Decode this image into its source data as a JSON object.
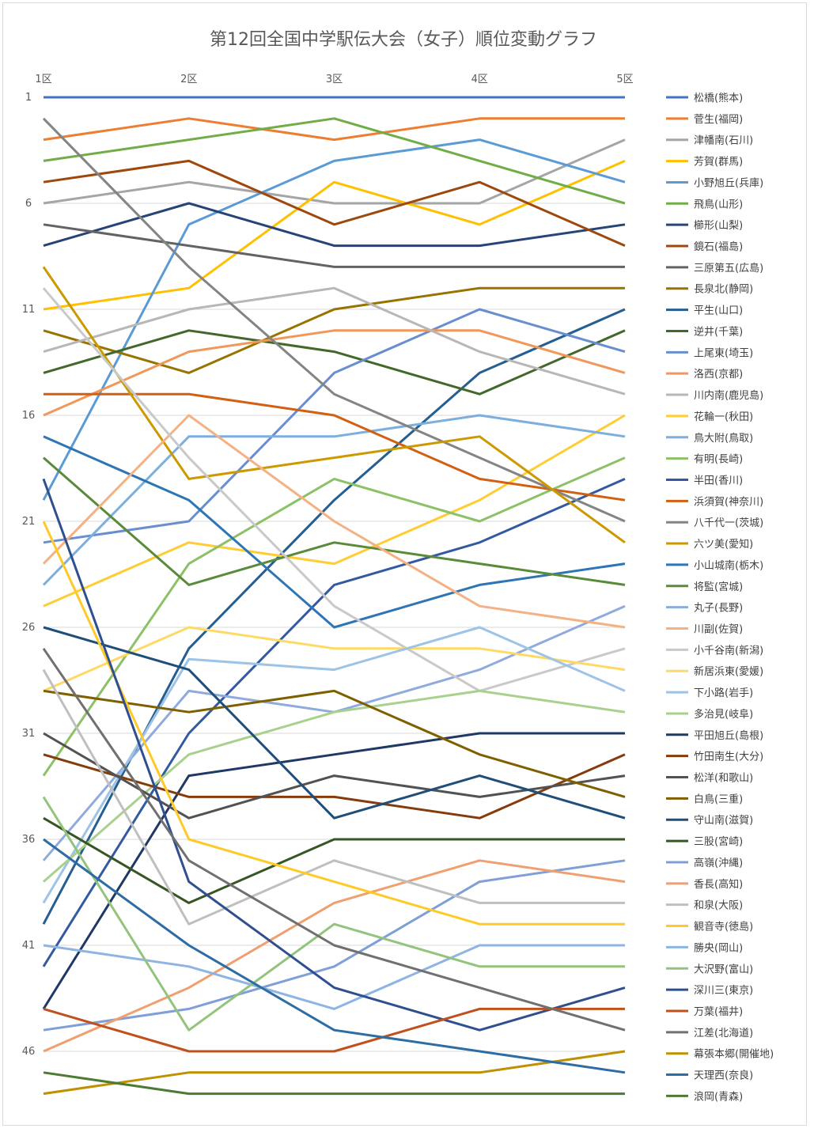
{
  "chart_data": {
    "type": "line",
    "title": "第12回全国中学駅伝大会（女子）順位変動グラフ",
    "xlabel": "",
    "ylabel": "",
    "categories": [
      "1区",
      "2区",
      "3区",
      "4区",
      "5区"
    ],
    "y_reversed": true,
    "ylim": [
      1,
      47
    ],
    "y_ticks": [
      1,
      6,
      11,
      16,
      21,
      26,
      31,
      36,
      41,
      46
    ],
    "grid": true,
    "legend_position": "right",
    "series": [
      {
        "name": "松橋(熊本)",
        "color": "#4472c4",
        "values": [
          1,
          1,
          1,
          1,
          1
        ]
      },
      {
        "name": "菅生(福岡)",
        "color": "#ed7d31",
        "values": [
          3,
          2,
          3,
          2,
          2
        ]
      },
      {
        "name": "津幡南(石川)",
        "color": "#a5a5a5",
        "values": [
          6,
          5,
          6,
          6,
          3
        ]
      },
      {
        "name": "芳賀(群馬)",
        "color": "#ffc000",
        "values": [
          11,
          10,
          5,
          7,
          4
        ]
      },
      {
        "name": "小野旭丘(兵庫)",
        "color": "#5b9bd5",
        "values": [
          20,
          7,
          4,
          3,
          5
        ]
      },
      {
        "name": "飛鳥(山形)",
        "color": "#70ad47",
        "values": [
          4,
          3,
          2,
          4,
          6
        ]
      },
      {
        "name": "櫛形(山梨)",
        "color": "#264478",
        "values": [
          8,
          6,
          8,
          8,
          7
        ]
      },
      {
        "name": "鏡石(福島)",
        "color": "#9e480e",
        "values": [
          5,
          4,
          7,
          5,
          8
        ]
      },
      {
        "name": "三原第五(広島)",
        "color": "#636363",
        "values": [
          7,
          8,
          9,
          9,
          9
        ]
      },
      {
        "name": "長泉北(静岡)",
        "color": "#997300",
        "values": [
          12,
          14,
          11,
          10,
          10
        ]
      },
      {
        "name": "平生(山口)",
        "color": "#255e91",
        "values": [
          40,
          27,
          20,
          14,
          11
        ]
      },
      {
        "name": "逆井(千葉)",
        "color": "#43682b",
        "values": [
          14,
          12,
          13,
          15,
          12
        ]
      },
      {
        "name": "上尾東(埼玉)",
        "color": "#698ed0",
        "values": [
          22,
          21,
          14,
          11,
          13
        ]
      },
      {
        "name": "洛西(京都)",
        "color": "#f1975a",
        "values": [
          16,
          13,
          12,
          12,
          14
        ]
      },
      {
        "name": "川内南(鹿児島)",
        "color": "#b7b7b7",
        "values": [
          13,
          11,
          10,
          13,
          15
        ]
      },
      {
        "name": "花輪一(秋田)",
        "color": "#ffcd33",
        "values": [
          25,
          22,
          23,
          20,
          16
        ]
      },
      {
        "name": "鳥大附(鳥取)",
        "color": "#7cafdd",
        "values": [
          24,
          17,
          17,
          16,
          17
        ]
      },
      {
        "name": "有明(長崎)",
        "color": "#8cc168",
        "values": [
          33,
          23,
          19,
          21,
          18
        ]
      },
      {
        "name": "半田(香川)",
        "color": "#335aa1",
        "values": [
          42,
          31,
          24,
          22,
          19
        ]
      },
      {
        "name": "浜須賀(神奈川)",
        "color": "#d26012",
        "values": [
          15,
          15,
          16,
          19,
          20
        ]
      },
      {
        "name": "八千代一(茨城)",
        "color": "#848484",
        "values": [
          2,
          9,
          15,
          18,
          21
        ]
      },
      {
        "name": "六ツ美(愛知)",
        "color": "#cc9a00",
        "values": [
          9,
          19,
          18,
          17,
          22
        ]
      },
      {
        "name": "小山城南(栃木)",
        "color": "#2e75b6",
        "values": [
          17,
          20,
          26,
          24,
          23
        ]
      },
      {
        "name": "将監(宮城)",
        "color": "#5a8b3a",
        "values": [
          18,
          24,
          22,
          23,
          24
        ]
      },
      {
        "name": "丸子(長野)",
        "color": "#8faadc",
        "values": [
          37,
          29,
          30,
          28,
          25
        ]
      },
      {
        "name": "川副(佐賀)",
        "color": "#f4b183",
        "values": [
          23,
          16,
          21,
          25,
          26
        ]
      },
      {
        "name": "小千谷南(新潟)",
        "color": "#c9c9c9",
        "values": [
          10,
          18,
          25,
          29,
          27
        ]
      },
      {
        "name": "新居浜東(愛媛)",
        "color": "#ffd966",
        "values": [
          29,
          26,
          27,
          27,
          28
        ]
      },
      {
        "name": "下小路(岩手)",
        "color": "#9dc3e6",
        "values": [
          39,
          27.5,
          28,
          26,
          29
        ]
      },
      {
        "name": "多治見(岐阜)",
        "color": "#a9d18e",
        "values": [
          38,
          32,
          30,
          29,
          30
        ]
      },
      {
        "name": "平田旭丘(島根)",
        "color": "#1f3864",
        "values": [
          44,
          33,
          32,
          31,
          31
        ]
      },
      {
        "name": "竹田南生(大分)",
        "color": "#843c0c",
        "values": [
          32,
          34,
          34,
          35,
          32
        ]
      },
      {
        "name": "松洋(和歌山)",
        "color": "#525252",
        "values": [
          31,
          35,
          33,
          34,
          33
        ]
      },
      {
        "name": "白鳥(三重)",
        "color": "#7f6000",
        "values": [
          29,
          30,
          29,
          32,
          34
        ]
      },
      {
        "name": "守山南(滋賀)",
        "color": "#1f4e79",
        "values": [
          26,
          28,
          35,
          33,
          35
        ]
      },
      {
        "name": "三股(宮崎)",
        "color": "#375623",
        "values": [
          35,
          39,
          36,
          36,
          36
        ]
      },
      {
        "name": "高嶺(沖縄)",
        "color": "#7f9fd8",
        "values": [
          45,
          44,
          42,
          38,
          37
        ]
      },
      {
        "name": "香長(高知)",
        "color": "#f0a070",
        "values": [
          46,
          43,
          39,
          37,
          38
        ]
      },
      {
        "name": "和泉(大阪)",
        "color": "#bfbfbf",
        "values": [
          28,
          40,
          37,
          39,
          39
        ]
      },
      {
        "name": "観音寺(徳島)",
        "color": "#ffca28",
        "values": [
          21,
          36,
          38,
          40,
          40
        ]
      },
      {
        "name": "勝央(岡山)",
        "color": "#8db4e2",
        "values": [
          41,
          42,
          44,
          41,
          41
        ]
      },
      {
        "name": "大沢野(富山)",
        "color": "#93c47d",
        "values": [
          34,
          45,
          40,
          42,
          42
        ]
      },
      {
        "name": "深川三(東京)",
        "color": "#2f4f8f",
        "values": [
          19,
          38,
          43,
          45,
          43
        ]
      },
      {
        "name": "万葉(福井)",
        "color": "#c0501c",
        "values": [
          44,
          46,
          46,
          44,
          44
        ]
      },
      {
        "name": "江差(北海道)",
        "color": "#707070",
        "values": [
          27,
          37,
          41,
          43,
          45
        ]
      },
      {
        "name": "幕張本郷(開催地)",
        "color": "#bf9000",
        "values": [
          48,
          47,
          47,
          47,
          46
        ]
      },
      {
        "name": "天理西(奈良)",
        "color": "#2e6da4",
        "values": [
          36,
          41,
          45,
          46,
          47
        ]
      },
      {
        "name": "浪岡(青森)",
        "color": "#4e7a34",
        "values": [
          47,
          48,
          48,
          48,
          48
        ]
      }
    ]
  }
}
